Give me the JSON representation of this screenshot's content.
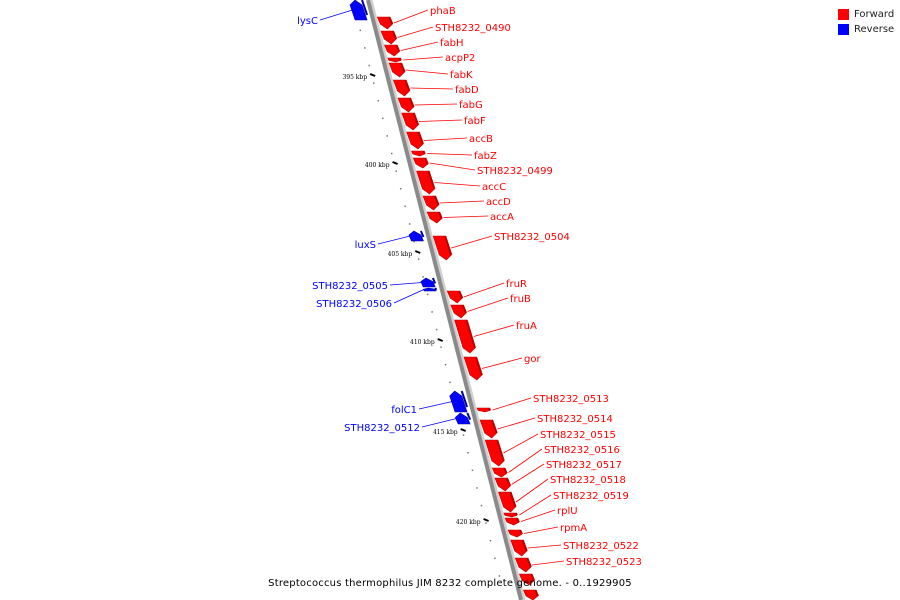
{
  "legend": {
    "items": [
      {
        "label": "Forward",
        "color": "#ff0000"
      },
      {
        "label": "Reverse",
        "color": "#0000ff"
      }
    ]
  },
  "caption": "Streptococcus thermophilus JIM 8232 complete genome. - 0..1929905",
  "colors": {
    "forward": "#ff0000",
    "forward_dark": "#b80000",
    "reverse": "#0000ff",
    "reverse_dark": "#0000a0",
    "backbone": "#8a8a8a"
  },
  "ruler": {
    "ticks": [
      {
        "label": "395 kbp"
      },
      {
        "label": "400 kbp"
      },
      {
        "label": "405 kbp"
      },
      {
        "label": "410 kbp"
      },
      {
        "label": "415 kbp"
      },
      {
        "label": "420 kbp"
      }
    ]
  },
  "genes": [
    {
      "name": "lysC",
      "strand": "reverse"
    },
    {
      "name": "phaB",
      "strand": "forward"
    },
    {
      "name": "STH8232_0490",
      "strand": "forward"
    },
    {
      "name": "fabH",
      "strand": "forward"
    },
    {
      "name": "acpP2",
      "strand": "forward"
    },
    {
      "name": "fabK",
      "strand": "forward"
    },
    {
      "name": "fabD",
      "strand": "forward"
    },
    {
      "name": "fabG",
      "strand": "forward"
    },
    {
      "name": "fabF",
      "strand": "forward"
    },
    {
      "name": "accB",
      "strand": "forward"
    },
    {
      "name": "fabZ",
      "strand": "forward"
    },
    {
      "name": "STH8232_0499",
      "strand": "forward"
    },
    {
      "name": "accC",
      "strand": "forward"
    },
    {
      "name": "accD",
      "strand": "forward"
    },
    {
      "name": "accA",
      "strand": "forward"
    },
    {
      "name": "luxS",
      "strand": "reverse"
    },
    {
      "name": "STH8232_0504",
      "strand": "forward"
    },
    {
      "name": "STH8232_0505",
      "strand": "reverse"
    },
    {
      "name": "STH8232_0506",
      "strand": "reverse"
    },
    {
      "name": "fruR",
      "strand": "forward"
    },
    {
      "name": "fruB",
      "strand": "forward"
    },
    {
      "name": "fruA",
      "strand": "forward"
    },
    {
      "name": "gor",
      "strand": "forward"
    },
    {
      "name": "folC1",
      "strand": "reverse"
    },
    {
      "name": "STH8232_0512",
      "strand": "reverse"
    },
    {
      "name": "STH8232_0513",
      "strand": "forward"
    },
    {
      "name": "STH8232_0514",
      "strand": "forward"
    },
    {
      "name": "STH8232_0515",
      "strand": "forward"
    },
    {
      "name": "STH8232_0516",
      "strand": "forward"
    },
    {
      "name": "STH8232_0517",
      "strand": "forward"
    },
    {
      "name": "STH8232_0518",
      "strand": "forward"
    },
    {
      "name": "STH8232_0519",
      "strand": "forward"
    },
    {
      "name": "rplU",
      "strand": "forward"
    },
    {
      "name": "rpmA",
      "strand": "forward"
    },
    {
      "name": "STH8232_0522",
      "strand": "forward"
    },
    {
      "name": "STH8232_0523",
      "strand": "forward"
    }
  ]
}
